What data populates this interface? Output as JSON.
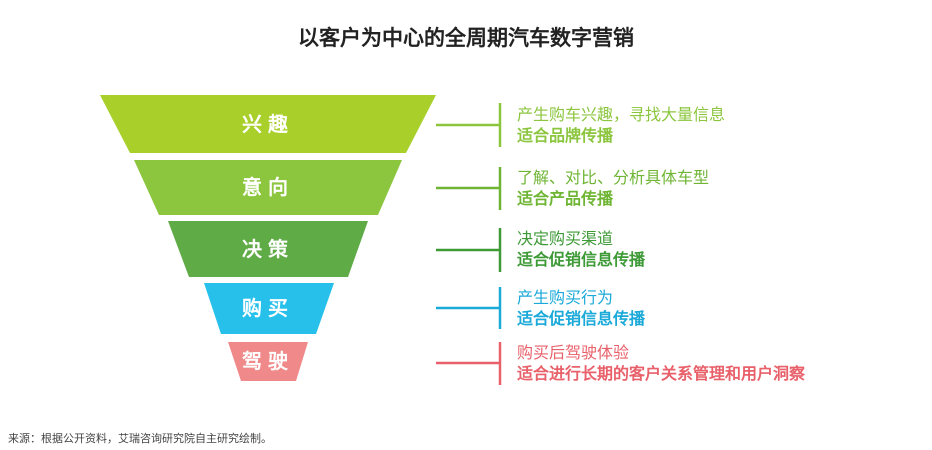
{
  "title": "以客户为中心的全周期汽车数字营销",
  "stages": [
    {
      "label": "兴趣",
      "color": "#a8cf2a",
      "desc1": "产生购车兴趣，寻找大量信息",
      "desc2": "适合品牌传播",
      "text_color": "#8cc63f"
    },
    {
      "label": "意向",
      "color": "#8cc63f",
      "desc1": "了解、对比、分析具体车型",
      "desc2": "适合产品传播",
      "text_color": "#6fb534"
    },
    {
      "label": "决策",
      "color": "#5fab46",
      "desc1": "决定购买渠道",
      "desc2": "适合促销信息传播",
      "text_color": "#3e9a37"
    },
    {
      "label": "购买",
      "color": "#27c0ea",
      "desc1": "产生购买行为",
      "desc2": "适合促销信息传播",
      "text_color": "#1aa9d9"
    },
    {
      "label": "驾驶",
      "color": "#f08a8a",
      "desc1": "购买后驾驶体验",
      "desc2": "适合进行长期的客户关系管理和用户洞察",
      "text_color": "#e8606a"
    }
  ],
  "source": "来源：根据公开资料，艾瑞咨询研究院自主研究绘制。"
}
